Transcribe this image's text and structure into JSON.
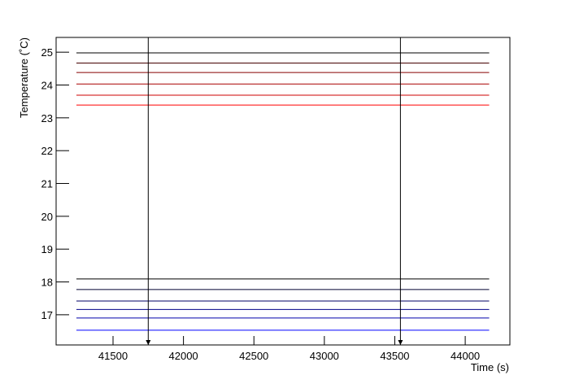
{
  "chart_data": {
    "type": "line",
    "x_label": "Time (s)",
    "y_label": "Temperature (˚C)",
    "x": [
      41240,
      44170
    ],
    "series": [
      {
        "color": "#000000",
        "values": [
          24.98,
          24.98
        ]
      },
      {
        "color": "#440000",
        "values": [
          24.67,
          24.67
        ]
      },
      {
        "color": "#880000",
        "values": [
          24.38,
          24.38
        ]
      },
      {
        "color": "#aa0000",
        "values": [
          24.03,
          24.03
        ]
      },
      {
        "color": "#cc0000",
        "values": [
          23.69,
          23.69
        ]
      },
      {
        "color": "#ff0000",
        "values": [
          23.39,
          23.39
        ]
      },
      {
        "color": "#000000",
        "values": [
          18.09,
          18.09
        ]
      },
      {
        "color": "#000033",
        "values": [
          17.77,
          17.77
        ]
      },
      {
        "color": "#000066",
        "values": [
          17.42,
          17.42
        ]
      },
      {
        "color": "#000088",
        "values": [
          17.16,
          17.16
        ]
      },
      {
        "color": "#0000aa",
        "values": [
          16.9,
          16.9
        ]
      },
      {
        "color": "#0000ff",
        "values": [
          16.53,
          16.53
        ]
      }
    ],
    "markers": [
      41750,
      43540
    ],
    "xlim": [
      41096,
      44317
    ],
    "ylim": [
      16.08,
      25.45
    ],
    "xticks": [
      41500,
      42000,
      42500,
      43000,
      43500,
      44000
    ],
    "yticks": [
      17,
      18,
      19,
      20,
      21,
      22,
      23,
      24,
      25
    ]
  }
}
